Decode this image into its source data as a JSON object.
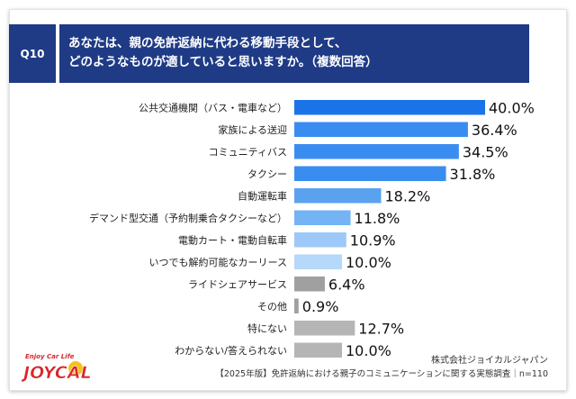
{
  "question": {
    "number": "Q10",
    "line1": "あなたは、親の免許返納に代わる移動手段として、",
    "line2": "どのようなものが適していると思いますか。（複数回答）"
  },
  "chart_data": {
    "type": "bar",
    "orientation": "horizontal",
    "categories": [
      "公共交通機関（バス・電車など）",
      "家族による送迎",
      "コミュニティバス",
      "タクシー",
      "自動運転車",
      "デマンド型交通（予約制乗合タクシーなど）",
      "電動カート・電動自転車",
      "いつでも解約可能なカーリース",
      "ライドシェアサービス",
      "その他",
      "特にない",
      "わからない/答えられない"
    ],
    "values": [
      40.0,
      36.4,
      34.5,
      31.8,
      18.2,
      11.8,
      10.9,
      10.0,
      6.4,
      0.9,
      12.7,
      10.0
    ],
    "value_labels": [
      "40.0%",
      "36.4%",
      "34.5%",
      "31.8%",
      "18.2%",
      "11.8%",
      "10.9%",
      "10.0%",
      "6.4%",
      "0.9%",
      "12.7%",
      "10.0%"
    ],
    "bar_colors": [
      "#1a74e8",
      "#3a8df0",
      "#3a8df0",
      "#3a8df0",
      "#5aa2f0",
      "#74b3f4",
      "#9cc9f7",
      "#b6d8fa",
      "#a0a0a0",
      "#a0a0a0",
      "#b5b5b5",
      "#b5b5b5"
    ],
    "xlim": [
      0,
      40
    ],
    "grid": false,
    "legend": "none"
  },
  "footer": {
    "company": "株式会社ジョイカルジャパン",
    "source": "【2025年版】免許返納における親子のコミュニケーションに関する実態調査｜n=110"
  },
  "logo": {
    "tagline": "Enjoy Car Life",
    "name": "JOYCAL",
    "colors": {
      "main": "#d8272c",
      "accent": "#f4c21a"
    }
  },
  "colors": {
    "banner": "#1f3b86",
    "label_text": "#222222",
    "value_text": "#111111"
  }
}
